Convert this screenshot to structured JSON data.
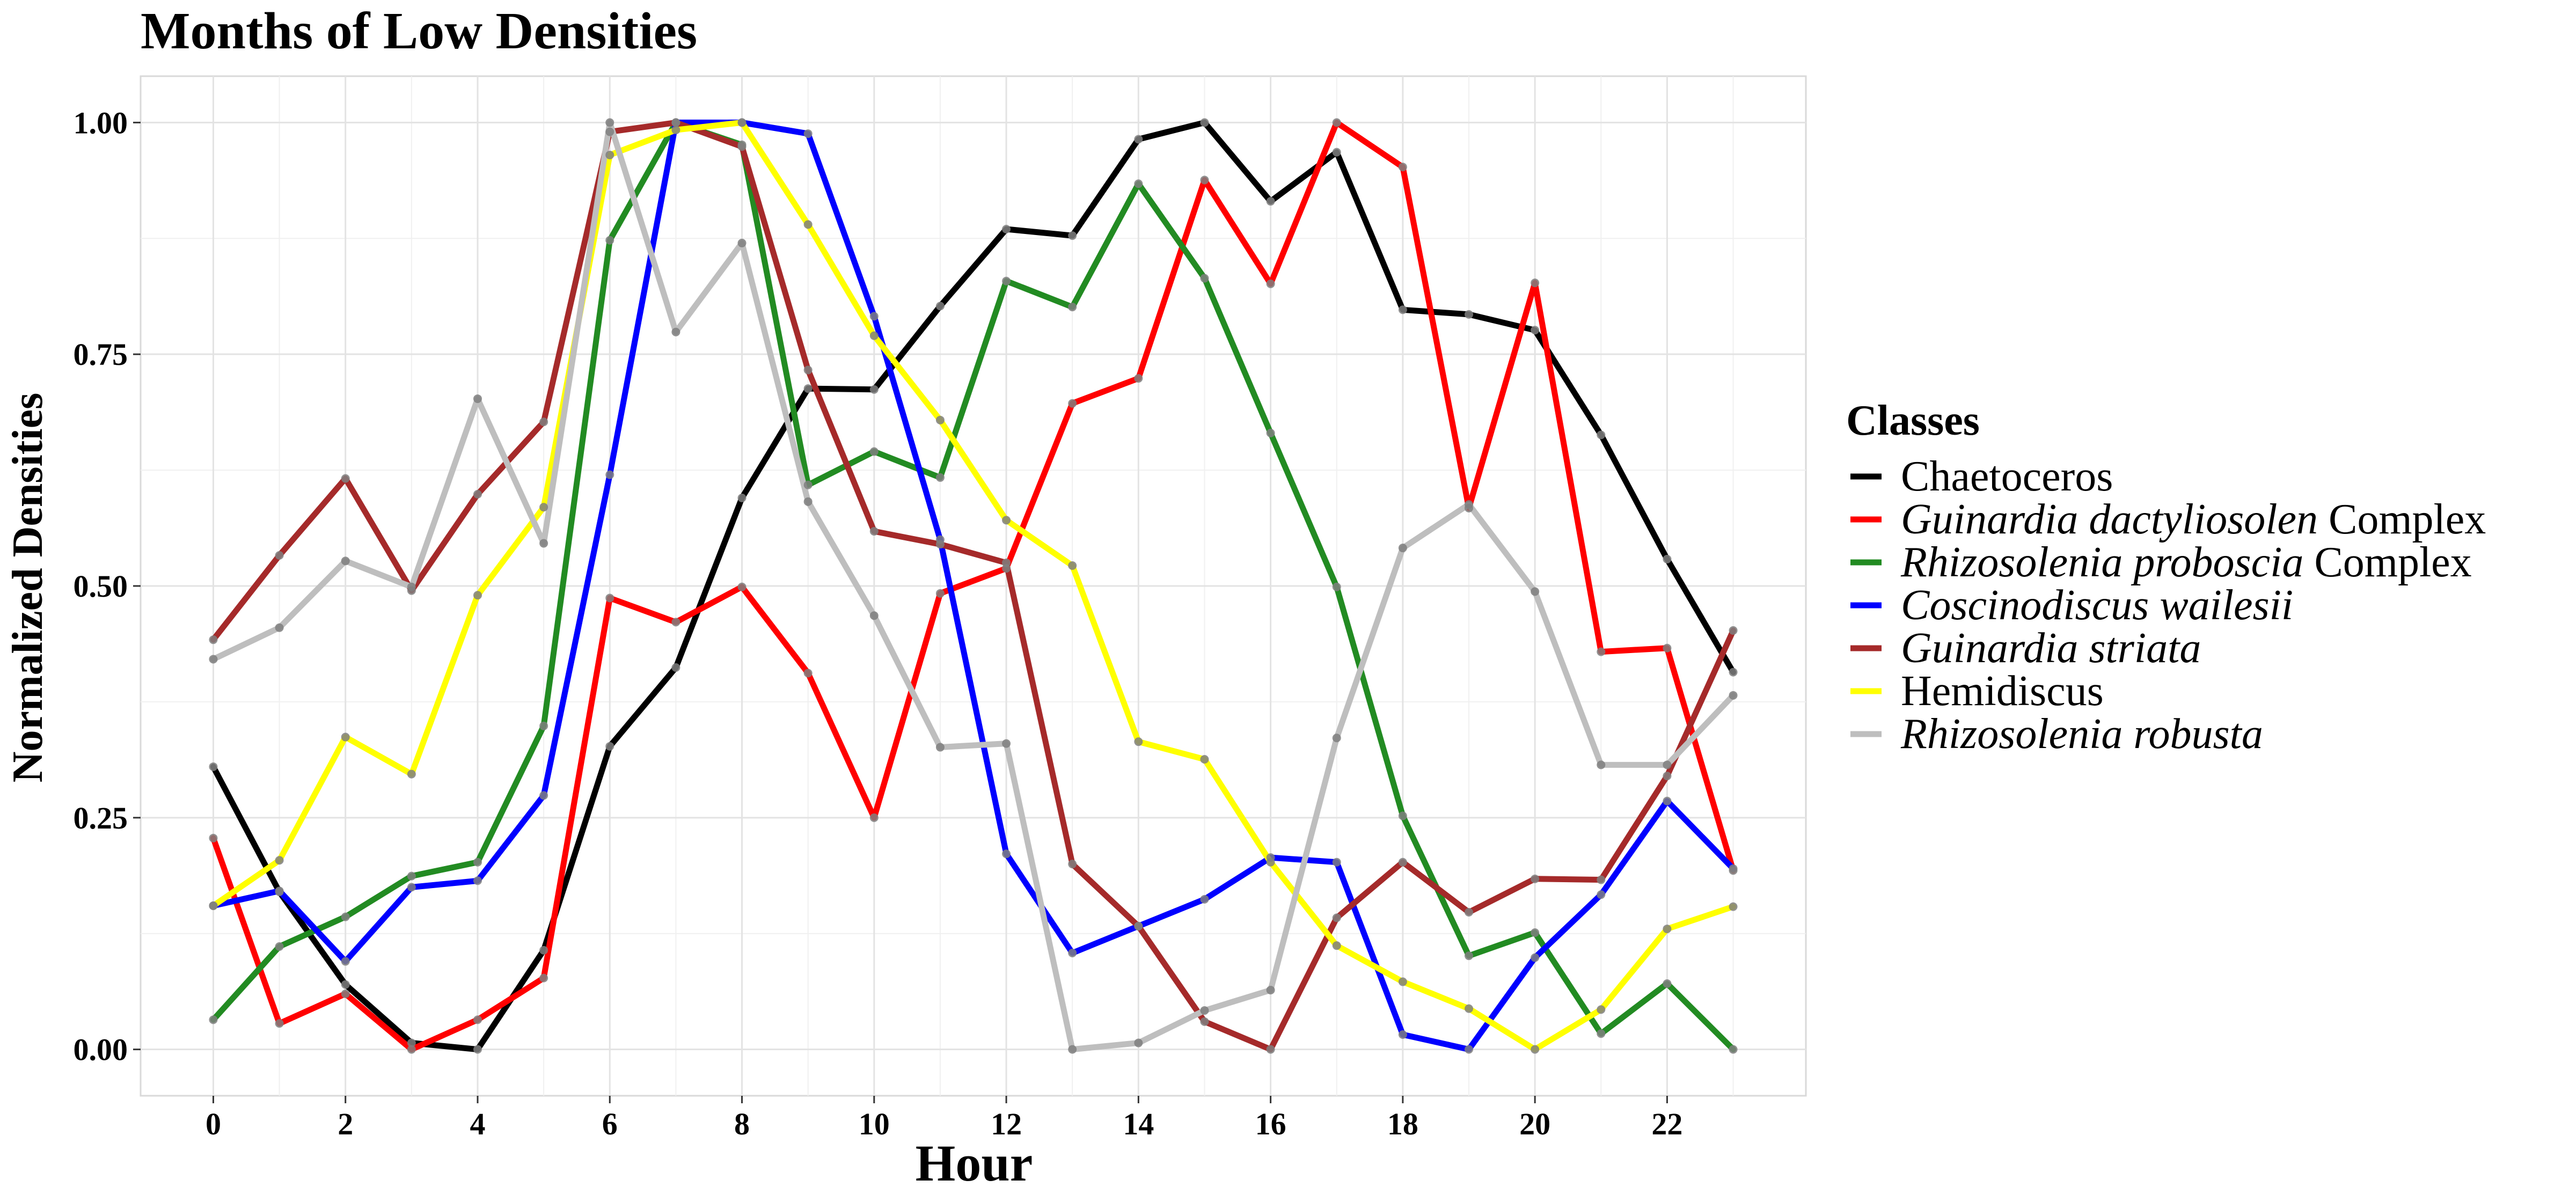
{
  "chart_data": {
    "type": "line",
    "title": "Months of Low Densities",
    "xlabel": "Hour",
    "ylabel": "Normalized Densities",
    "xlim": [
      -1.1,
      24.1
    ],
    "ylim": [
      -0.05,
      1.05
    ],
    "xticks": [
      0,
      2,
      4,
      6,
      8,
      10,
      12,
      14,
      16,
      18,
      20,
      22
    ],
    "xtick_labels": [
      "0",
      "2",
      "4",
      "6",
      "8",
      "10",
      "12",
      "14",
      "16",
      "18",
      "20",
      "22"
    ],
    "yticks": [
      0,
      0.25,
      0.5,
      0.75,
      1.0
    ],
    "ytick_labels": [
      "0.00",
      "0.25",
      "0.50",
      "0.75",
      "1.00"
    ],
    "grid": true,
    "legend_title": "Classes",
    "legend_position": "right",
    "x": [
      0,
      1,
      2,
      3,
      4,
      5,
      6,
      7,
      8,
      9,
      10,
      11,
      12,
      13,
      14,
      15,
      16,
      17,
      18,
      19,
      20,
      21,
      22,
      23
    ],
    "series": [
      {
        "name": "Chaetoceros",
        "legend_parts": [
          {
            "text": "Chaetoceros",
            "italic": false
          }
        ],
        "color": "#000000",
        "values": [
          0.305,
          0.17,
          0.07,
          0.007,
          0.0,
          0.107,
          0.327,
          0.412,
          0.595,
          0.713,
          0.712,
          0.802,
          0.885,
          0.878,
          0.982,
          1.0,
          0.915,
          0.968,
          0.798,
          0.793,
          0.776,
          0.663,
          0.529,
          0.407
        ]
      },
      {
        "name": "Guinardia dactyliosolen Complex",
        "legend_parts": [
          {
            "text": "Guinardia dactyliosolen",
            "italic": true
          },
          {
            "text": " Complex",
            "italic": false
          }
        ],
        "color": "#ff0000",
        "values": [
          0.228,
          0.028,
          0.06,
          0.0,
          0.032,
          0.077,
          0.487,
          0.461,
          0.499,
          0.406,
          0.25,
          0.492,
          0.519,
          0.697,
          0.724,
          0.938,
          0.826,
          1.0,
          0.952,
          0.584,
          0.827,
          0.429,
          0.433,
          0.193
        ]
      },
      {
        "name": "Rhizosolenia proboscia Complex",
        "legend_parts": [
          {
            "text": "Rhizosolenia proboscia",
            "italic": true
          },
          {
            "text": " Complex",
            "italic": false
          }
        ],
        "color": "#228b22",
        "values": [
          0.032,
          0.111,
          0.143,
          0.187,
          0.202,
          0.349,
          0.873,
          1.0,
          0.976,
          0.609,
          0.645,
          0.617,
          0.829,
          0.801,
          0.934,
          0.832,
          0.665,
          0.499,
          0.252,
          0.101,
          0.126,
          0.017,
          0.071,
          0.0
        ]
      },
      {
        "name": "Coscinodiscus wailesii",
        "legend_parts": [
          {
            "text": "Coscinodiscus wailesii",
            "italic": true
          }
        ],
        "color": "#0000ff",
        "values": [
          0.155,
          0.171,
          0.095,
          0.175,
          0.182,
          0.274,
          0.62,
          1.0,
          1.0,
          0.988,
          0.791,
          0.55,
          0.211,
          0.104,
          0.133,
          0.162,
          0.207,
          0.202,
          0.016,
          0.0,
          0.099,
          0.167,
          0.268,
          0.195
        ]
      },
      {
        "name": "Guinardia striata",
        "legend_parts": [
          {
            "text": "Guinardia striata",
            "italic": true
          }
        ],
        "color": "#a52a2a",
        "values": [
          0.442,
          0.533,
          0.616,
          0.495,
          0.599,
          0.677,
          0.99,
          1.0,
          0.974,
          0.733,
          0.559,
          0.545,
          0.525,
          0.2,
          0.133,
          0.03,
          0.0,
          0.142,
          0.202,
          0.148,
          0.184,
          0.183,
          0.295,
          0.452
        ]
      },
      {
        "name": "Hemidiscus",
        "legend_parts": [
          {
            "text": "Hemidiscus",
            "italic": false
          }
        ],
        "color": "#ffff00",
        "values": [
          0.155,
          0.204,
          0.337,
          0.297,
          0.49,
          0.585,
          0.965,
          0.992,
          1.0,
          0.89,
          0.77,
          0.679,
          0.571,
          0.522,
          0.332,
          0.313,
          0.202,
          0.112,
          0.073,
          0.044,
          0.0,
          0.043,
          0.13,
          0.154
        ]
      },
      {
        "name": "Rhizosolenia robusta",
        "legend_parts": [
          {
            "text": "Rhizosolenia robusta",
            "italic": true
          }
        ],
        "color": "#bebebe",
        "values": [
          0.421,
          0.455,
          0.527,
          0.499,
          0.702,
          0.546,
          1.0,
          0.774,
          0.87,
          0.591,
          0.468,
          0.326,
          0.33,
          0.0,
          0.007,
          0.042,
          0.064,
          0.336,
          0.541,
          0.588,
          0.494,
          0.307,
          0.307,
          0.382
        ]
      }
    ]
  }
}
